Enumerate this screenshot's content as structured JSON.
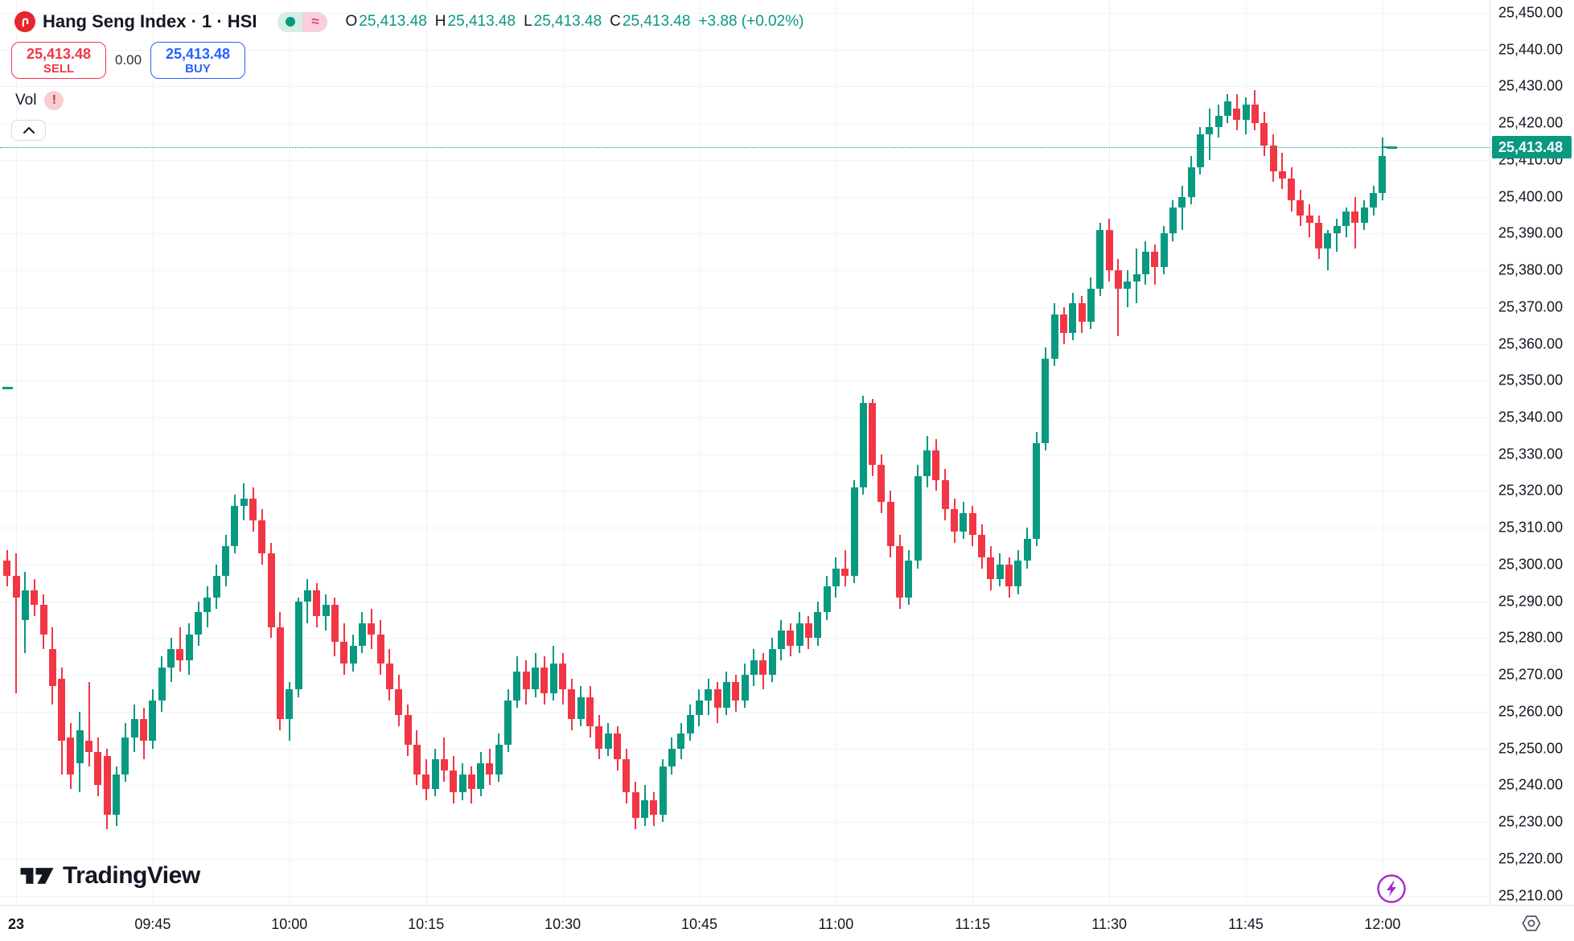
{
  "header": {
    "title": "Hang Seng Index · 1 · HSI",
    "status_badges": [
      {
        "name": "market-open-dot",
        "bg": "#d5eee6",
        "dot_color": "#089981"
      },
      {
        "name": "approximate-data",
        "symbol": "≈",
        "bg": "#f8cfdd",
        "symbol_color": "#e23d6f"
      }
    ],
    "ohlc": {
      "items": [
        {
          "label": "O",
          "value": "25,413.48"
        },
        {
          "label": "H",
          "value": "25,413.48"
        },
        {
          "label": "L",
          "value": "25,413.48"
        },
        {
          "label": "C",
          "value": "25,413.48"
        }
      ],
      "change": "+3.88 (+0.02%)",
      "value_color": "#089981"
    },
    "trade_panel": {
      "sell": {
        "price": "25,413.48",
        "label": "SELL",
        "color": "#f23645"
      },
      "spread": "0.00",
      "buy": {
        "price": "25,413.48",
        "label": "BUY",
        "color": "#2962ff"
      }
    },
    "legend": {
      "label": "Vol",
      "warning_symbol": "!"
    }
  },
  "watermark": {
    "brand": "TradingView"
  },
  "colors": {
    "up": "#089981",
    "down": "#f23645",
    "grid": "#f0f2f6",
    "axis_border": "#e0e3eb",
    "text": "#131722",
    "lightning_icon": "#a02bc9",
    "instrument_logo_bg": "#e8242d"
  },
  "chart_data": {
    "type": "candlestick",
    "symbol": "HSI",
    "title": "Hang Seng Index",
    "interval": "1 minute",
    "grid": true,
    "legend_position": "top-left",
    "last_price": {
      "value": 25413.48,
      "label": "25,413.48"
    },
    "y_axis": {
      "side": "right",
      "min": 25210,
      "max": 25450,
      "step": 10,
      "prices": [
        25450,
        25440,
        25430,
        25420,
        25410,
        25400,
        25390,
        25380,
        25370,
        25360,
        25350,
        25340,
        25330,
        25320,
        25310,
        25300,
        25290,
        25280,
        25270,
        25260,
        25250,
        25240,
        25230,
        25220,
        25210
      ],
      "labels": [
        "25,450.00",
        "25,440.00",
        "25,430.00",
        "25,420.00",
        "25,410.00",
        "25,400.00",
        "25,390.00",
        "25,380.00",
        "25,370.00",
        "25,360.00",
        "25,350.00",
        "25,340.00",
        "25,330.00",
        "25,320.00",
        "25,310.00",
        "25,300.00",
        "25,290.00",
        "25,280.00",
        "25,270.00",
        "25,260.00",
        "25,250.00",
        "25,240.00",
        "25,230.00",
        "25,220.00",
        "25,210.00"
      ]
    },
    "x_axis": {
      "start_time": "09:29",
      "ticks": [
        {
          "text": "23",
          "minute": 1,
          "bold": true
        },
        {
          "text": "09:45",
          "minute": 16
        },
        {
          "text": "10:00",
          "minute": 31
        },
        {
          "text": "10:15",
          "minute": 46
        },
        {
          "text": "10:30",
          "minute": 61
        },
        {
          "text": "10:45",
          "minute": 76
        },
        {
          "text": "11:00",
          "minute": 91
        },
        {
          "text": "11:15",
          "minute": 106
        },
        {
          "text": "11:30",
          "minute": 121
        },
        {
          "text": "11:45",
          "minute": 136
        },
        {
          "text": "12:00",
          "minute": 151
        }
      ]
    },
    "left_edge_marker_price": 25348,
    "columns": [
      "time",
      "open",
      "high",
      "low",
      "close"
    ],
    "candles": [
      [
        "09:29",
        25301,
        25304,
        25294,
        25297
      ],
      [
        "09:30",
        25297,
        25303,
        25265,
        25291
      ],
      [
        "09:31",
        25285,
        25298,
        25276,
        25293
      ],
      [
        "09:32",
        25293,
        25296,
        25286,
        25289
      ],
      [
        "09:33",
        25289,
        25292,
        25277,
        25281
      ],
      [
        "09:34",
        25277,
        25283,
        25262,
        25267
      ],
      [
        "09:35",
        25269,
        25272,
        25243,
        25252
      ],
      [
        "09:36",
        25253,
        25257,
        25239,
        25243
      ],
      [
        "09:37",
        25246,
        25260,
        25238,
        25255
      ],
      [
        "09:38",
        25252,
        25268,
        25245,
        25249
      ],
      [
        "09:39",
        25249,
        25253,
        25237,
        25240
      ],
      [
        "09:40",
        25248,
        25250,
        25228,
        25232
      ],
      [
        "09:41",
        25232,
        25245,
        25229,
        25243
      ],
      [
        "09:42",
        25243,
        25257,
        25241,
        25253
      ],
      [
        "09:43",
        25253,
        25262,
        25249,
        25258
      ],
      [
        "09:44",
        25258,
        25261,
        25247,
        25252
      ],
      [
        "09:45",
        25252,
        25266,
        25250,
        25263
      ],
      [
        "09:46",
        25263,
        25275,
        25260,
        25272
      ],
      [
        "09:47",
        25272,
        25280,
        25268,
        25277
      ],
      [
        "09:48",
        25277,
        25283,
        25271,
        25274
      ],
      [
        "09:49",
        25274,
        25284,
        25270,
        25281
      ],
      [
        "09:50",
        25281,
        25290,
        25278,
        25287
      ],
      [
        "09:51",
        25287,
        25294,
        25283,
        25291
      ],
      [
        "09:52",
        25291,
        25300,
        25288,
        25297
      ],
      [
        "09:53",
        25297,
        25308,
        25294,
        25305
      ],
      [
        "09:54",
        25305,
        25319,
        25303,
        25316
      ],
      [
        "09:55",
        25316,
        25322,
        25312,
        25318
      ],
      [
        "09:56",
        25318,
        25321,
        25309,
        25312
      ],
      [
        "09:57",
        25312,
        25315,
        25300,
        25303
      ],
      [
        "09:58",
        25303,
        25306,
        25280,
        25283
      ],
      [
        "09:59",
        25283,
        25287,
        25255,
        25258
      ],
      [
        "10:00",
        25258,
        25268,
        25252,
        25266
      ],
      [
        "10:01",
        25266,
        25291,
        25264,
        25290
      ],
      [
        "10:02",
        25290,
        25296,
        25284,
        25293
      ],
      [
        "10:03",
        25293,
        25295,
        25283,
        25286
      ],
      [
        "10:04",
        25286,
        25292,
        25282,
        25289
      ],
      [
        "10:05",
        25289,
        25291,
        25275,
        25279
      ],
      [
        "10:06",
        25279,
        25284,
        25270,
        25273
      ],
      [
        "10:07",
        25273,
        25281,
        25271,
        25278
      ],
      [
        "10:08",
        25278,
        25287,
        25276,
        25284
      ],
      [
        "10:09",
        25284,
        25288,
        25277,
        25281
      ],
      [
        "10:10",
        25281,
        25285,
        25270,
        25273
      ],
      [
        "10:11",
        25273,
        25277,
        25263,
        25266
      ],
      [
        "10:12",
        25266,
        25270,
        25256,
        25259
      ],
      [
        "10:13",
        25259,
        25262,
        25248,
        25251
      ],
      [
        "10:14",
        25251,
        25255,
        25240,
        25243
      ],
      [
        "10:15",
        25243,
        25247,
        25236,
        25239
      ],
      [
        "10:16",
        25239,
        25250,
        25237,
        25247
      ],
      [
        "10:17",
        25247,
        25253,
        25241,
        25244
      ],
      [
        "10:18",
        25244,
        25248,
        25235,
        25238
      ],
      [
        "10:19",
        25238,
        25246,
        25236,
        25243
      ],
      [
        "10:20",
        25243,
        25245,
        25235,
        25239
      ],
      [
        "10:21",
        25239,
        25249,
        25237,
        25246
      ],
      [
        "10:22",
        25246,
        25250,
        25240,
        25243
      ],
      [
        "10:23",
        25243,
        25254,
        25241,
        25251
      ],
      [
        "10:24",
        25251,
        25266,
        25249,
        25263
      ],
      [
        "10:25",
        25263,
        25275,
        25261,
        25271
      ],
      [
        "10:26",
        25271,
        25274,
        25262,
        25266
      ],
      [
        "10:27",
        25266,
        25276,
        25264,
        25272
      ],
      [
        "10:28",
        25272,
        25275,
        25262,
        25265
      ],
      [
        "10:29",
        25265,
        25278,
        25263,
        25273
      ],
      [
        "10:30",
        25273,
        25276,
        25262,
        25266
      ],
      [
        "10:31",
        25266,
        25269,
        25255,
        25258
      ],
      [
        "10:32",
        25258,
        25267,
        25256,
        25264
      ],
      [
        "10:33",
        25264,
        25267,
        25253,
        25256
      ],
      [
        "10:34",
        25256,
        25259,
        25247,
        25250
      ],
      [
        "10:35",
        25250,
        25257,
        25248,
        25254
      ],
      [
        "10:36",
        25254,
        25256,
        25244,
        25247
      ],
      [
        "10:37",
        25247,
        25250,
        25235,
        25238
      ],
      [
        "10:38",
        25238,
        25241,
        25228,
        25231
      ],
      [
        "10:39",
        25231,
        25240,
        25229,
        25236
      ],
      [
        "10:40",
        25236,
        25238,
        25229,
        25232
      ],
      [
        "10:41",
        25232,
        25247,
        25230,
        25245
      ],
      [
        "10:42",
        25245,
        25253,
        25243,
        25250
      ],
      [
        "10:43",
        25250,
        25257,
        25247,
        25254
      ],
      [
        "10:44",
        25254,
        25262,
        25252,
        25259
      ],
      [
        "10:45",
        25259,
        25266,
        25256,
        25263
      ],
      [
        "10:46",
        25263,
        25269,
        25259,
        25266
      ],
      [
        "10:47",
        25266,
        25268,
        25257,
        25261
      ],
      [
        "10:48",
        25261,
        25271,
        25259,
        25268
      ],
      [
        "10:49",
        25268,
        25270,
        25260,
        25263
      ],
      [
        "10:50",
        25263,
        25273,
        25261,
        25270
      ],
      [
        "10:51",
        25270,
        25277,
        25267,
        25274
      ],
      [
        "10:52",
        25274,
        25276,
        25266,
        25270
      ],
      [
        "10:53",
        25270,
        25280,
        25268,
        25277
      ],
      [
        "10:54",
        25277,
        25285,
        25274,
        25282
      ],
      [
        "10:55",
        25282,
        25284,
        25275,
        25278
      ],
      [
        "10:56",
        25278,
        25287,
        25276,
        25284
      ],
      [
        "10:57",
        25284,
        25286,
        25277,
        25280
      ],
      [
        "10:58",
        25280,
        25290,
        25278,
        25287
      ],
      [
        "10:59",
        25287,
        25297,
        25285,
        25294
      ],
      [
        "11:00",
        25294,
        25302,
        25291,
        25299
      ],
      [
        "11:01",
        25299,
        25304,
        25294,
        25297
      ],
      [
        "11:02",
        25297,
        25323,
        25295,
        25321
      ],
      [
        "11:03",
        25321,
        25346,
        25319,
        25344
      ],
      [
        "11:04",
        25344,
        25345,
        25324,
        25327
      ],
      [
        "11:05",
        25327,
        25330,
        25314,
        25317
      ],
      [
        "11:06",
        25317,
        25320,
        25302,
        25305
      ],
      [
        "11:07",
        25305,
        25308,
        25288,
        25291
      ],
      [
        "11:08",
        25291,
        25304,
        25289,
        25301
      ],
      [
        "11:09",
        25301,
        25327,
        25299,
        25324
      ],
      [
        "11:10",
        25324,
        25335,
        25321,
        25331
      ],
      [
        "11:11",
        25331,
        25334,
        25320,
        25323
      ],
      [
        "11:12",
        25323,
        25326,
        25312,
        25315
      ],
      [
        "11:13",
        25315,
        25318,
        25306,
        25309
      ],
      [
        "11:14",
        25309,
        25317,
        25307,
        25314
      ],
      [
        "11:15",
        25314,
        25316,
        25305,
        25308
      ],
      [
        "11:16",
        25308,
        25311,
        25299,
        25302
      ],
      [
        "11:17",
        25302,
        25305,
        25293,
        25296
      ],
      [
        "11:18",
        25296,
        25303,
        25294,
        25300
      ],
      [
        "11:19",
        25300,
        25302,
        25291,
        25294
      ],
      [
        "11:20",
        25294,
        25304,
        25292,
        25301
      ],
      [
        "11:21",
        25301,
        25310,
        25299,
        25307
      ],
      [
        "11:22",
        25307,
        25336,
        25305,
        25333
      ],
      [
        "11:23",
        25333,
        25359,
        25331,
        25356
      ],
      [
        "11:24",
        25356,
        25371,
        25354,
        25368
      ],
      [
        "11:25",
        25368,
        25370,
        25360,
        25363
      ],
      [
        "11:26",
        25363,
        25374,
        25361,
        25371
      ],
      [
        "11:27",
        25371,
        25373,
        25363,
        25366
      ],
      [
        "11:28",
        25366,
        25378,
        25364,
        25375
      ],
      [
        "11:29",
        25375,
        25393,
        25373,
        25391
      ],
      [
        "11:30",
        25391,
        25394,
        25377,
        25380
      ],
      [
        "11:31",
        25380,
        25383,
        25362,
        25375
      ],
      [
        "11:32",
        25375,
        25380,
        25370,
        25377
      ],
      [
        "11:33",
        25377,
        25386,
        25371,
        25379
      ],
      [
        "11:34",
        25379,
        25388,
        25376,
        25385
      ],
      [
        "11:35",
        25385,
        25387,
        25376,
        25381
      ],
      [
        "11:36",
        25381,
        25392,
        25379,
        25390
      ],
      [
        "11:37",
        25390,
        25399,
        25388,
        25397
      ],
      [
        "11:38",
        25397,
        25403,
        25391,
        25400
      ],
      [
        "11:39",
        25400,
        25411,
        25398,
        25408
      ],
      [
        "11:40",
        25408,
        25419,
        25406,
        25417
      ],
      [
        "11:41",
        25417,
        25424,
        25410,
        25419
      ],
      [
        "11:42",
        25419,
        25425,
        25416,
        25422
      ],
      [
        "11:43",
        25422,
        25428,
        25420,
        25426
      ],
      [
        "11:44",
        25424,
        25428,
        25418,
        25421
      ],
      [
        "11:45",
        25421,
        25427,
        25417,
        25425
      ],
      [
        "11:46",
        25425,
        25429,
        25418,
        25420
      ],
      [
        "11:47",
        25420,
        25423,
        25411,
        25414
      ],
      [
        "11:48",
        25414,
        25417,
        25404,
        25407
      ],
      [
        "11:49",
        25407,
        25412,
        25402,
        25405
      ],
      [
        "11:50",
        25405,
        25408,
        25396,
        25399
      ],
      [
        "11:51",
        25399,
        25402,
        25392,
        25395
      ],
      [
        "11:52",
        25395,
        25398,
        25389,
        25393
      ],
      [
        "11:53",
        25393,
        25395,
        25383,
        25386
      ],
      [
        "11:54",
        25386,
        25391,
        25380,
        25390
      ],
      [
        "11:55",
        25390,
        25394,
        25385,
        25392
      ],
      [
        "11:56",
        25392,
        25397,
        25389,
        25396
      ],
      [
        "11:57",
        25396,
        25400,
        25386,
        25393
      ],
      [
        "11:58",
        25393,
        25399,
        25391,
        25397
      ],
      [
        "11:59",
        25397,
        25403,
        25395,
        25401
      ],
      [
        "12:00",
        25401,
        25416,
        25399,
        25411
      ],
      [
        "12:01",
        25413.48,
        25413.48,
        25413.48,
        25413.48
      ]
    ]
  }
}
